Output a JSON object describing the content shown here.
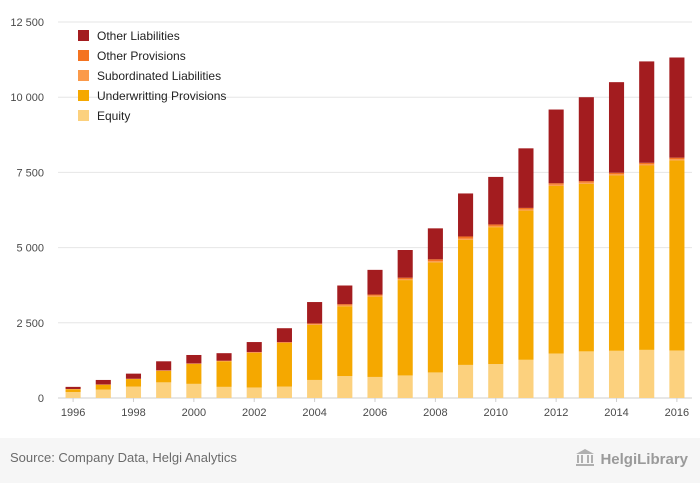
{
  "chart_data": {
    "type": "bar",
    "stacked": true,
    "title": "",
    "xlabel": "",
    "ylabel": "",
    "ylim": [
      0,
      12500
    ],
    "y_ticks": [
      0,
      2500,
      5000,
      7500,
      10000,
      12500
    ],
    "y_tick_labels": [
      "0",
      "2 500",
      "5 000",
      "7 500",
      "10 000",
      "12 500"
    ],
    "grid": "horizontal",
    "legend_position": "top-left",
    "categories": [
      "1996",
      "1997",
      "1998",
      "1999",
      "2000",
      "2001",
      "2002",
      "2003",
      "2004",
      "2005",
      "2006",
      "2007",
      "2008",
      "2009",
      "2010",
      "2011",
      "2012",
      "2013",
      "2014",
      "2015",
      "2016"
    ],
    "x_tick_labels": [
      "1996",
      "1998",
      "2000",
      "2002",
      "2004",
      "2006",
      "2008",
      "2010",
      "2012",
      "2014",
      "2016"
    ],
    "series": [
      {
        "name": "Equity",
        "color": "#fcd17e",
        "values": [
          200,
          280,
          380,
          520,
          470,
          370,
          350,
          380,
          600,
          730,
          700,
          750,
          850,
          1100,
          1130,
          1270,
          1480,
          1550,
          1570,
          1600,
          1580
        ]
      },
      {
        "name": "Underwritting Provisions",
        "color": "#f5a800",
        "values": [
          90,
          160,
          250,
          380,
          660,
          850,
          1150,
          1450,
          1830,
          2320,
          2670,
          3170,
          3660,
          4160,
          4550,
          4960,
          5570,
          5570,
          5830,
          6130,
          6320
        ]
      },
      {
        "name": "Subordinated Liabilities",
        "color": "#fb9a4a",
        "values": [
          5,
          5,
          5,
          10,
          10,
          10,
          15,
          15,
          20,
          30,
          30,
          30,
          40,
          40,
          40,
          40,
          40,
          40,
          40,
          40,
          40
        ]
      },
      {
        "name": "Other Provisions",
        "color": "#f47320",
        "values": [
          5,
          5,
          5,
          10,
          10,
          10,
          15,
          15,
          30,
          40,
          40,
          50,
          60,
          70,
          50,
          50,
          50,
          50,
          50,
          50,
          50
        ]
      },
      {
        "name": "Other Liabilities",
        "color": "#a31c1f",
        "values": [
          70,
          150,
          170,
          300,
          280,
          250,
          330,
          460,
          710,
          620,
          820,
          920,
          1030,
          1430,
          1580,
          1980,
          2450,
          2790,
          3010,
          3370,
          3330
        ]
      }
    ],
    "legend_order": [
      "Other Liabilities",
      "Other Provisions",
      "Subordinated Liabilities",
      "Underwritting Provisions",
      "Equity"
    ]
  },
  "footer": {
    "source": "Source: Company Data, Helgi Analytics",
    "brand": "HelgiLibrary"
  },
  "colors": {
    "grid": "#e6e6e6",
    "footer_bg": "#f6f6f6"
  },
  "icons": {
    "brand_logo": "library-building-icon"
  }
}
